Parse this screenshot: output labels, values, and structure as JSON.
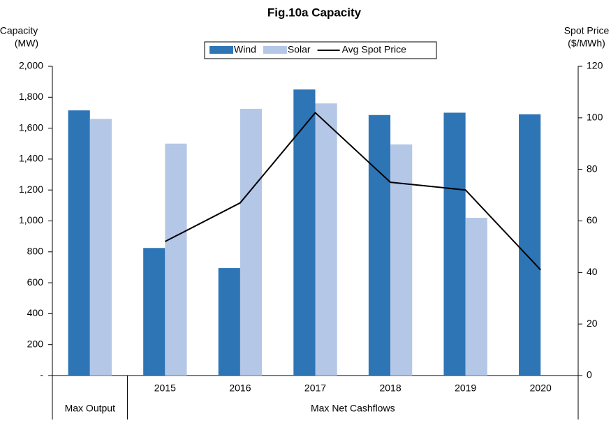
{
  "chart_data": {
    "type": "bar",
    "title": "Fig.10a Capacity",
    "y_label": [
      "Capacity",
      "(MW)"
    ],
    "y2_label": [
      "Spot Price",
      "($/MWh)"
    ],
    "categories": [
      null,
      "2015",
      "2016",
      "2017",
      "2018",
      "2019",
      "2020"
    ],
    "groups": [
      {
        "label": "Max Output",
        "count": 1
      },
      {
        "label": "Max Net Cashflows",
        "count": 6
      }
    ],
    "series": [
      {
        "name": "Wind",
        "type": "bar",
        "color": "#2e75b6",
        "values": [
          1715,
          825,
          695,
          1850,
          1685,
          1700,
          1690
        ]
      },
      {
        "name": "Solar",
        "type": "bar",
        "color": "#b4c7e7",
        "values": [
          1660,
          1500,
          1725,
          1760,
          1495,
          1020,
          null
        ]
      },
      {
        "name": "Avg Spot Price",
        "type": "line",
        "axis": "y2",
        "color": "#000000",
        "values": [
          null,
          52,
          67,
          102,
          75,
          72,
          41
        ]
      }
    ],
    "ylim": [
      0,
      2000
    ],
    "yticks": [
      {
        "value": 0,
        "label": "-"
      },
      200,
      400,
      600,
      800,
      {
        "value": 1000,
        "label": "1,000"
      },
      {
        "value": 1200,
        "label": "1,200"
      },
      {
        "value": 1400,
        "label": "1,400"
      },
      {
        "value": 1600,
        "label": "1,600"
      },
      {
        "value": 1800,
        "label": "1,800"
      },
      {
        "value": 2000,
        "label": "2,000"
      }
    ],
    "y2lim": [
      0,
      120
    ],
    "y2ticks": [
      0,
      20,
      40,
      60,
      80,
      100,
      120
    ],
    "legend": "top",
    "grid": false
  }
}
